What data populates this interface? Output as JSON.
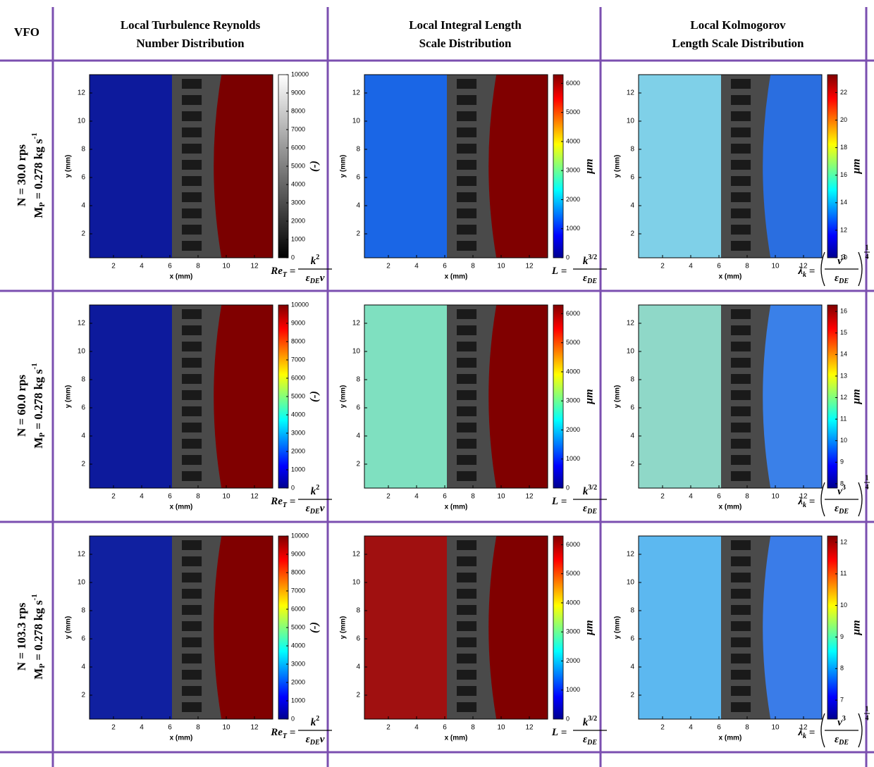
{
  "header": {
    "corner": "VFO",
    "columns": [
      [
        "Local Turbulence Reynolds",
        "Number Distribution"
      ],
      [
        "Local Integral Length",
        "Scale Distribution"
      ],
      [
        "Local Kolmogorov",
        "Length Scale Distribution"
      ]
    ]
  },
  "rows": [
    {
      "n": "N = 30.0 rps",
      "m": "M",
      "m_sub": "P",
      "m_rest": " = 0.278 kg s",
      "m_sup": "-1"
    },
    {
      "n": "N = 60.0 rps",
      "m": "M",
      "m_sub": "P",
      "m_rest": " = 0.278 kg s",
      "m_sup": "-1"
    },
    {
      "n": "N = 103.3 rps",
      "m": "M",
      "m_sub": "P",
      "m_rest": " = 0.278 kg s",
      "m_sup": "-1"
    }
  ],
  "axes": {
    "xlim": [
      0.3,
      13.3
    ],
    "ylim": [
      0.3,
      13.3
    ],
    "xticks": [
      2,
      4,
      6,
      8,
      10,
      12
    ],
    "yticks": [
      2,
      4,
      6,
      8,
      10,
      12
    ],
    "xlabel": "x (mm)",
    "ylabel": "y (mm)"
  },
  "formulas": [
    {
      "lhs": "Re",
      "lhs_sub": "T",
      "eq": "=",
      "num": "k",
      "num_sup": "2",
      "den": "ε",
      "den_sub": "DE",
      "den_tail": "ν"
    },
    {
      "lhs": "L",
      "eq": "=",
      "num": "k",
      "num_sup": "3/2",
      "den": "ε",
      "den_sub": "DE"
    },
    {
      "lhs": "λ",
      "lhs_sub": "k",
      "eq": "=",
      "num": "ν",
      "num_sup": "3",
      "den": "ε",
      "den_sub": "DE",
      "exp_num": "1",
      "exp_den": "4"
    }
  ],
  "panels": [
    [
      {
        "colormap": "gray",
        "clim": [
          0,
          10000
        ],
        "cticks": [
          0,
          1000,
          2000,
          3000,
          4000,
          5000,
          6000,
          7000,
          8000,
          9000,
          10000
        ],
        "unit": "(-)",
        "left_color": "#0d1a9c",
        "right_color": "#7a0000"
      },
      {
        "colormap": "jet",
        "clim": [
          0,
          6300
        ],
        "cticks": [
          0,
          1000,
          2000,
          3000,
          4000,
          5000,
          6000
        ],
        "unit": "μm",
        "left_color": "#1a66e6",
        "right_color": "#800000"
      },
      {
        "colormap": "jet",
        "clim": [
          10,
          23.3
        ],
        "cticks": [
          10,
          12,
          14,
          16,
          18,
          20,
          22
        ],
        "unit": "μm",
        "left_color": "#7fd0e8",
        "right_color": "#2a6ee0"
      }
    ],
    [
      {
        "colormap": "jet",
        "clim": [
          0,
          10000
        ],
        "cticks": [
          0,
          1000,
          2000,
          3000,
          4000,
          5000,
          6000,
          7000,
          8000,
          9000,
          10000
        ],
        "unit": "(-)",
        "left_color": "#0d1a9c",
        "right_color": "#800000"
      },
      {
        "colormap": "jet",
        "clim": [
          0,
          6300
        ],
        "cticks": [
          0,
          1000,
          2000,
          3000,
          4000,
          5000,
          6000
        ],
        "unit": "μm",
        "left_color": "#7fe0c0",
        "right_color": "#800000"
      },
      {
        "colormap": "jet",
        "clim": [
          7.8,
          16.3
        ],
        "cticks": [
          8,
          9,
          10,
          11,
          12,
          13,
          14,
          15,
          16
        ],
        "unit": "μm",
        "left_color": "#8fd8c8",
        "right_color": "#3a80e8"
      }
    ],
    [
      {
        "colormap": "jet",
        "clim": [
          0,
          10000
        ],
        "cticks": [
          0,
          1000,
          2000,
          3000,
          4000,
          5000,
          6000,
          7000,
          8000,
          9000,
          10000
        ],
        "unit": "(-)",
        "left_color": "#1020a0",
        "right_color": "#800000"
      },
      {
        "colormap": "jet",
        "clim": [
          0,
          6300
        ],
        "cticks": [
          0,
          1000,
          2000,
          3000,
          4000,
          5000,
          6000
        ],
        "unit": "μm",
        "left_color": "#a01010",
        "right_color": "#800000"
      },
      {
        "colormap": "jet",
        "clim": [
          6.4,
          12.2
        ],
        "cticks": [
          7,
          8,
          9,
          10,
          11,
          12
        ],
        "unit": "μm",
        "left_color": "#5cb8f0",
        "right_color": "#3a7ce8"
      }
    ]
  ]
}
